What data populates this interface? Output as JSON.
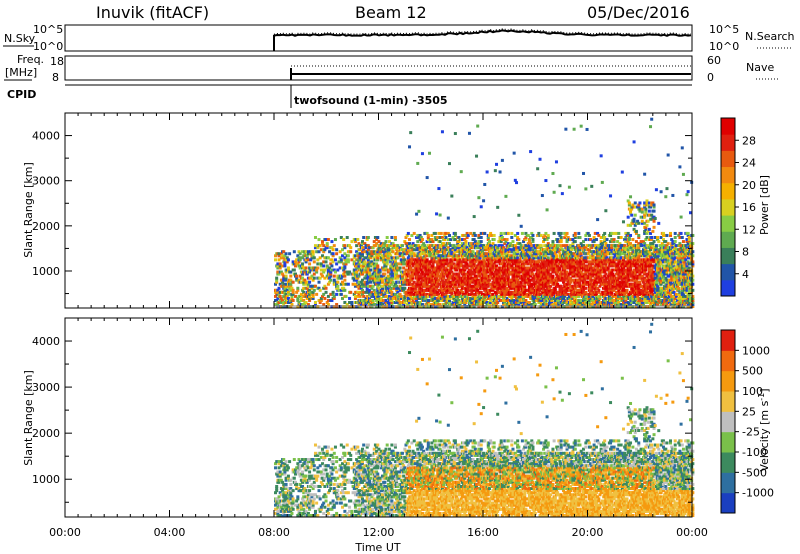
{
  "header": {
    "station": "Inuvik (fitACF)",
    "beam": "Beam 12",
    "date": "05/Dec/2016"
  },
  "top_panels": {
    "nsky_label": "N.Sky",
    "nsky_ticks": [
      "10^5",
      "10^0"
    ],
    "nsearch_ticks": [
      "10^5",
      "10^0"
    ],
    "nsearch_label": "N.Search",
    "freq_label": "Freq.",
    "freq_unit": "[MHz]",
    "freq_ticks": [
      "18",
      "8"
    ],
    "nave_ticks": [
      "60",
      "0"
    ],
    "nave_label": "Nave",
    "cpid_label": "CPID",
    "cpid_text": "twofsound (1-min) -3505"
  },
  "chart_data": [
    {
      "type": "heatmap",
      "name": "power",
      "ylabel": "Slant Range [km]",
      "y_ticks": [
        "1000",
        "2000",
        "3000",
        "4000"
      ],
      "ylim": [
        180,
        4500
      ],
      "colorbar_label": "Power [dB]",
      "colorbar_ticks": [
        "28",
        "24",
        "20",
        "16",
        "12",
        "8",
        "4"
      ],
      "colors": [
        "#1f3fe0",
        "#2155a8",
        "#3a7f5a",
        "#5faa50",
        "#88cc44",
        "#d8d020",
        "#f5b000",
        "#f28a10",
        "#e85a10",
        "#e02010",
        "#e00000"
      ],
      "data_start_hour": 8,
      "data_end_hour": 24
    },
    {
      "type": "heatmap",
      "name": "velocity",
      "ylabel": "Slant Range [km]",
      "y_ticks": [
        "1000",
        "2000",
        "3000",
        "4000"
      ],
      "ylim": [
        180,
        4500
      ],
      "colorbar_label": "Velocity [m s^-1]",
      "colorbar_ticks": [
        "1000",
        "500",
        "100",
        "25",
        "-25",
        "-100",
        "-500",
        "-1000"
      ],
      "colors": [
        "#1a3fc0",
        "#2e6fa0",
        "#3c8a5e",
        "#7ac04a",
        "#bfbfbf",
        "#f0c040",
        "#f59a10",
        "#f06a10",
        "#e02010"
      ],
      "xlabel": "Time UT",
      "x_ticks": [
        "00:00",
        "04:00",
        "08:00",
        "12:00",
        "16:00",
        "20:00",
        "00:00"
      ]
    }
  ]
}
